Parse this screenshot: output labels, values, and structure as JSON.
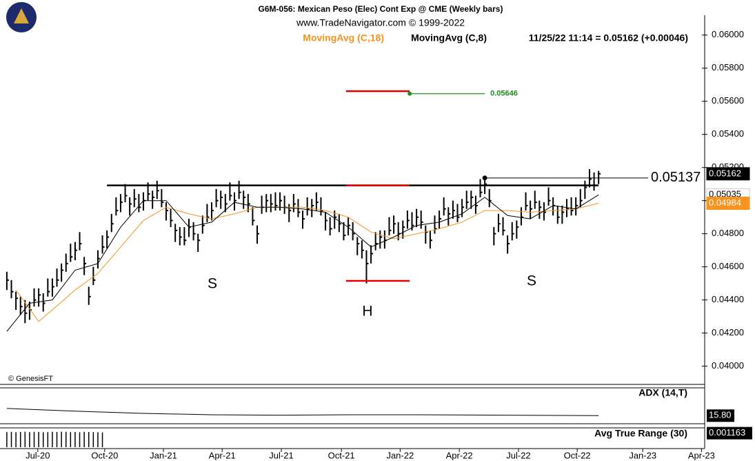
{
  "chart_data": {
    "type": "ohlc",
    "title": "G6M-056:  Mexican Peso (Elec) Cont Exp @ CME  (Weekly bars)",
    "subtitle": "www.TradeNavigator.com © 1999-2022",
    "quote": "11/25/22 11:14 = 0.05162 (+0.00046)",
    "copyright": "© GenesisFT",
    "bar_color": "#000000",
    "ylim": [
      0.0389,
      0.0612
    ],
    "yticks": [
      {
        "value": 0.04,
        "label": "0.04000"
      },
      {
        "value": 0.042,
        "label": "0.04200"
      },
      {
        "value": 0.044,
        "label": "0.04400"
      },
      {
        "value": 0.046,
        "label": "0.04600"
      },
      {
        "value": 0.048,
        "label": "0.04800"
      },
      {
        "value": 0.05,
        "label": "0.05000"
      },
      {
        "value": 0.052,
        "label": "0.05200"
      },
      {
        "value": 0.054,
        "label": "0.05400"
      },
      {
        "value": 0.056,
        "label": "0.05600"
      },
      {
        "value": 0.058,
        "label": "0.05800"
      },
      {
        "value": 0.06,
        "label": "0.06000"
      }
    ],
    "xlim": [
      -1.5,
      153.3
    ],
    "xticks": [
      {
        "value": 6.8,
        "label": "Jul-20"
      },
      {
        "value": 21.5,
        "label": "Oct-20"
      },
      {
        "value": 34.4,
        "label": "Jan-21"
      },
      {
        "value": 47.3,
        "label": "Apr-21"
      },
      {
        "value": 60.3,
        "label": "Jul-21"
      },
      {
        "value": 73.5,
        "label": "Oct-21"
      },
      {
        "value": 86.4,
        "label": "Jan-22"
      },
      {
        "value": 99.4,
        "label": "Apr-22"
      },
      {
        "value": 112.4,
        "label": "Jul-22"
      },
      {
        "value": 125.3,
        "label": "Oct-22"
      },
      {
        "value": 139.7,
        "label": "Jan-23"
      },
      {
        "value": 152.6,
        "label": "Apr-23"
      }
    ],
    "high": [
      0.0457,
      0.0452,
      0.0445,
      0.0442,
      0.044,
      0.0439,
      0.0447,
      0.0447,
      0.0444,
      0.0453,
      0.0453,
      0.0459,
      0.0462,
      0.0468,
      0.0474,
      0.0475,
      0.0481,
      0.0466,
      0.0448,
      0.046,
      0.047,
      0.0479,
      0.0482,
      0.0492,
      0.0502,
      0.0504,
      0.051,
      0.0502,
      0.0507,
      0.0504,
      0.0505,
      0.0511,
      0.0506,
      0.0512,
      0.0507,
      0.0499,
      0.0495,
      0.0486,
      0.0484,
      0.0484,
      0.0489,
      0.0487,
      0.048,
      0.0491,
      0.0498,
      0.0499,
      0.0507,
      0.0506,
      0.0504,
      0.0511,
      0.0505,
      0.0512,
      0.0506,
      0.0504,
      0.0496,
      0.0485,
      0.0503,
      0.0504,
      0.0504,
      0.0505,
      0.0505,
      0.0503,
      0.0498,
      0.0504,
      0.0501,
      0.0494,
      0.0502,
      0.0501,
      0.0505,
      0.0502,
      0.0493,
      0.049,
      0.0494,
      0.0492,
      0.0487,
      0.049,
      0.0487,
      0.0478,
      0.0476,
      0.047,
      0.0473,
      0.0481,
      0.0482,
      0.0482,
      0.049,
      0.0491,
      0.0487,
      0.0488,
      0.0494,
      0.0493,
      0.0495,
      0.0494,
      0.0485,
      0.0482,
      0.0491,
      0.0494,
      0.0502,
      0.0496,
      0.05,
      0.0498,
      0.0501,
      0.0506,
      0.0506,
      0.0503,
      0.0513,
      0.0515,
      0.0507,
      0.0484,
      0.0492,
      0.049,
      0.0479,
      0.0487,
      0.0488,
      0.0496,
      0.0505,
      0.05,
      0.0506,
      0.05,
      0.0499,
      0.0508,
      0.0502,
      0.0497,
      0.0497,
      0.0501,
      0.0502,
      0.0502,
      0.0507,
      0.0512,
      0.0519,
      0.0517,
      0.0518
    ],
    "low": [
      0.0446,
      0.0441,
      0.0434,
      0.0431,
      0.0426,
      0.0428,
      0.0436,
      0.0436,
      0.0433,
      0.0442,
      0.0442,
      0.0448,
      0.0451,
      0.0457,
      0.0463,
      0.0464,
      0.047,
      0.0455,
      0.0437,
      0.0449,
      0.0459,
      0.0468,
      0.0471,
      0.0481,
      0.0491,
      0.0493,
      0.0499,
      0.0491,
      0.0496,
      0.0493,
      0.0494,
      0.05,
      0.0495,
      0.0501,
      0.0496,
      0.0488,
      0.0484,
      0.0475,
      0.0473,
      0.0473,
      0.0478,
      0.0476,
      0.0469,
      0.048,
      0.0487,
      0.0488,
      0.0496,
      0.0495,
      0.0493,
      0.05,
      0.0494,
      0.0501,
      0.0495,
      0.0493,
      0.0485,
      0.0474,
      0.0492,
      0.0493,
      0.0493,
      0.0494,
      0.0494,
      0.0492,
      0.0487,
      0.0493,
      0.049,
      0.0483,
      0.0491,
      0.049,
      0.0494,
      0.0491,
      0.0482,
      0.0479,
      0.0483,
      0.0481,
      0.0476,
      0.0479,
      0.0476,
      0.0467,
      0.0465,
      0.045,
      0.0462,
      0.047,
      0.0471,
      0.0471,
      0.0479,
      0.048,
      0.0476,
      0.0477,
      0.0483,
      0.0482,
      0.0484,
      0.0483,
      0.0474,
      0.0471,
      0.048,
      0.0483,
      0.0491,
      0.0485,
      0.0489,
      0.0487,
      0.049,
      0.0495,
      0.0495,
      0.0492,
      0.0502,
      0.0504,
      0.0496,
      0.0473,
      0.0481,
      0.0479,
      0.0468,
      0.0476,
      0.0477,
      0.0485,
      0.0494,
      0.0489,
      0.0495,
      0.0489,
      0.0488,
      0.0497,
      0.0491,
      0.0486,
      0.0486,
      0.049,
      0.0491,
      0.0491,
      0.0496,
      0.0501,
      0.0508,
      0.0506,
      0.051
    ],
    "close": [
      0.0452,
      0.0445,
      0.0441,
      0.0436,
      0.0432,
      0.0434,
      0.044,
      0.0443,
      0.0438,
      0.0445,
      0.0448,
      0.0452,
      0.0458,
      0.0462,
      0.0466,
      0.047,
      0.0474,
      0.0462,
      0.0442,
      0.0452,
      0.0465,
      0.0472,
      0.0478,
      0.0486,
      0.0494,
      0.0499,
      0.0503,
      0.0498,
      0.0501,
      0.0496,
      0.05,
      0.0504,
      0.0502,
      0.0506,
      0.0499,
      0.0494,
      0.0488,
      0.0482,
      0.0478,
      0.0476,
      0.0484,
      0.048,
      0.0476,
      0.0485,
      0.049,
      0.0494,
      0.05,
      0.0502,
      0.0498,
      0.0503,
      0.05,
      0.0505,
      0.0502,
      0.0498,
      0.0488,
      0.048,
      0.0496,
      0.05,
      0.0498,
      0.0497,
      0.05,
      0.0496,
      0.0494,
      0.0498,
      0.0493,
      0.0489,
      0.0495,
      0.0497,
      0.0499,
      0.0494,
      0.0488,
      0.0483,
      0.049,
      0.0486,
      0.0479,
      0.0485,
      0.048,
      0.0474,
      0.047,
      0.0462,
      0.0468,
      0.0474,
      0.0478,
      0.0476,
      0.0482,
      0.0486,
      0.048,
      0.0484,
      0.0488,
      0.0485,
      0.049,
      0.0487,
      0.0481,
      0.0476,
      0.0483,
      0.0489,
      0.0495,
      0.0492,
      0.0494,
      0.049,
      0.0496,
      0.0499,
      0.0502,
      0.0497,
      0.0505,
      0.051,
      0.05,
      0.048,
      0.0486,
      0.0482,
      0.0474,
      0.048,
      0.0484,
      0.049,
      0.0497,
      0.0495,
      0.0499,
      0.0496,
      0.0493,
      0.05,
      0.0497,
      0.049,
      0.0493,
      0.0495,
      0.0494,
      0.0497,
      0.05,
      0.0508,
      0.0513,
      0.0509,
      0.05162
    ],
    "series": [
      {
        "name": "MovingAvg (C,18)",
        "color": "#f7931e",
        "x": [
          2,
          7,
          10,
          15,
          20,
          25,
          30,
          35,
          40,
          45,
          50,
          55,
          60,
          65,
          70,
          75,
          80,
          85,
          90,
          95,
          100,
          105,
          110,
          115,
          120,
          125,
          130
        ],
        "values": [
          0.0446,
          0.0427,
          0.0434,
          0.0446,
          0.0456,
          0.0472,
          0.0488,
          0.0496,
          0.0492,
          0.0489,
          0.0492,
          0.0496,
          0.0496,
          0.0496,
          0.0494,
          0.049,
          0.0481,
          0.0477,
          0.048,
          0.0483,
          0.0487,
          0.0494,
          0.0494,
          0.0493,
          0.0494,
          0.0495,
          0.04984
        ]
      },
      {
        "name": "MovingAvg (C,8)",
        "color": "#000000",
        "x": [
          0,
          5,
          10,
          15,
          20,
          25,
          30,
          35,
          40,
          45,
          50,
          55,
          60,
          65,
          70,
          75,
          80,
          85,
          90,
          95,
          100,
          105,
          110,
          115,
          120,
          125,
          130
        ],
        "values": [
          0.0421,
          0.0438,
          0.044,
          0.0458,
          0.0462,
          0.0484,
          0.05,
          0.05,
          0.0484,
          0.0487,
          0.0499,
          0.0496,
          0.0496,
          0.0495,
          0.0493,
          0.0484,
          0.0472,
          0.0478,
          0.0485,
          0.0487,
          0.0492,
          0.0502,
          0.0491,
          0.0489,
          0.0497,
          0.0495,
          0.05035
        ]
      }
    ],
    "price_labels": [
      {
        "value": 0.05162,
        "color": "#000000",
        "text_color": "#ffffff"
      },
      {
        "value": 0.05035,
        "color": "#ffffff",
        "text_color": "#000000"
      },
      {
        "value": 0.04984,
        "color": "#f7931e",
        "text_color": "#ffffff"
      }
    ],
    "neckline": {
      "value": 0.05092,
      "x": [
        22,
        130
      ],
      "color": "#000000"
    },
    "range_lines": [
      {
        "value": 0.05661,
        "x": [
          74.5,
          88.5
        ],
        "color": "#e00000"
      },
      {
        "value": 0.05092,
        "x": [
          74.5,
          88.5
        ],
        "color": "#e00000"
      },
      {
        "value": 0.04515,
        "x": [
          74.5,
          88.5
        ],
        "color": "#e00000"
      }
    ],
    "target": {
      "value": 0.05646,
      "x": [
        88.5,
        105
      ],
      "color": "#1a8f1a"
    },
    "level": {
      "value": 0.05137,
      "x": 105,
      "color": "#000000"
    },
    "pattern_labels": [
      "S",
      "H",
      "S"
    ],
    "adx": {
      "name": "ADX (14,T)",
      "ylim": [
        14,
        22
      ],
      "x": [
        0,
        15,
        30,
        45,
        60,
        75,
        90,
        110,
        130
      ],
      "values": [
        17.4,
        16.8,
        16.3,
        16.0,
        15.9,
        16.0,
        16.0,
        15.9,
        15.8
      ],
      "current": {
        "value": 15.8,
        "label": "15.80"
      }
    },
    "atr": {
      "name": "Avg True Range (30)",
      "ylim": [
        0,
        0.0016
      ],
      "values": [
        0.00125,
        0.00127,
        0.00124,
        0.00126,
        0.00128,
        0.00125,
        0.00127,
        0.00126,
        0.00124,
        0.00125,
        0.00127,
        0.00126,
        0.00128,
        0.00127,
        0.00125,
        0.00126,
        0.00124,
        0.00127,
        0.00126,
        0.00125,
        0.00124,
        0.00122
      ],
      "current": 0.001163
    }
  }
}
